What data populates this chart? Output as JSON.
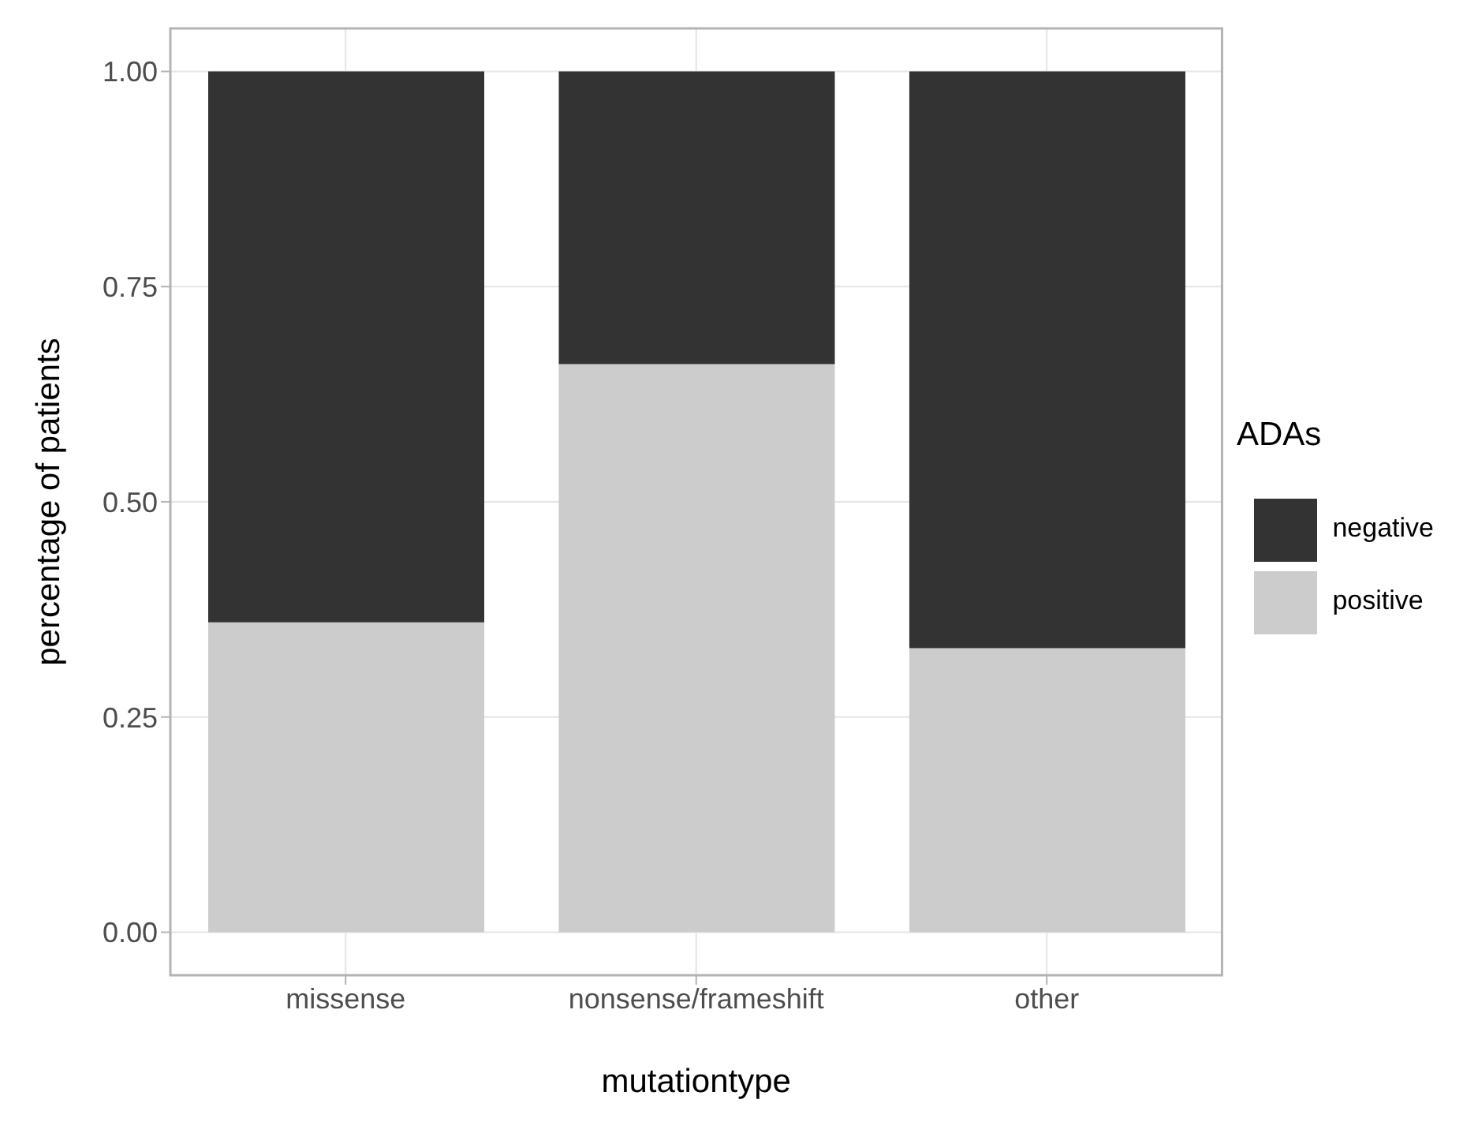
{
  "chart_data": {
    "type": "bar",
    "xlabel": "mutationtype",
    "ylabel": "percentage of patients",
    "legend_title": "ADAs",
    "categories": [
      "missense",
      "nonsense/frameshift",
      "other"
    ],
    "stacked": true,
    "series": [
      {
        "name": "positive",
        "color": "#cccccc",
        "values": [
          0.36,
          0.66,
          0.33
        ]
      },
      {
        "name": "negative",
        "color": "#333333",
        "values": [
          0.64,
          0.34,
          0.67
        ]
      }
    ],
    "ylim": [
      -0.05,
      1.05
    ],
    "yticks": [
      {
        "value": 0,
        "label": "0.00"
      },
      {
        "value": 0.25,
        "label": "0.25"
      },
      {
        "value": 0.5,
        "label": "0.50"
      },
      {
        "value": 0.75,
        "label": "0.75"
      },
      {
        "value": 1,
        "label": "1.00"
      }
    ],
    "grid": true,
    "legend": "right"
  }
}
